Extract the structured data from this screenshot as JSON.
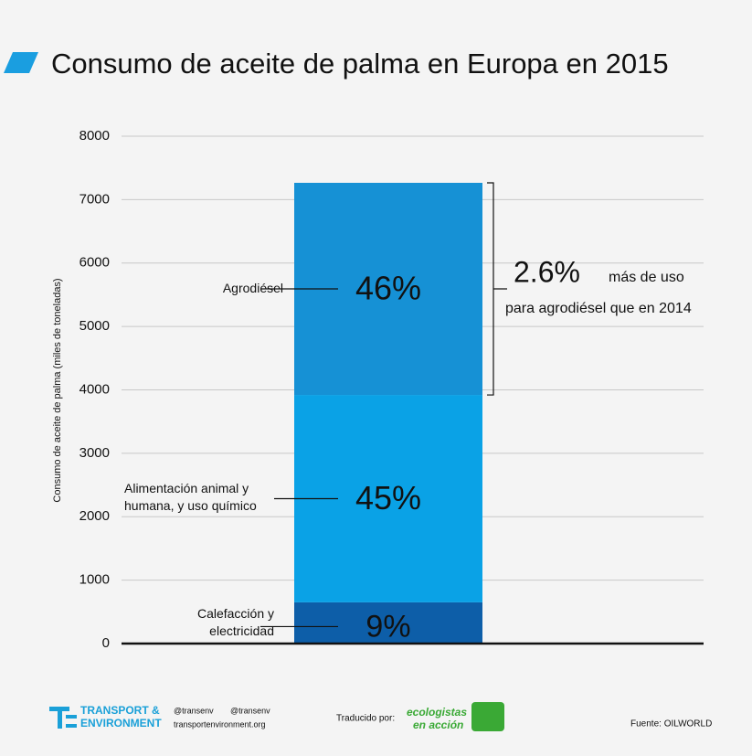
{
  "chart_data": {
    "type": "stacked_bar",
    "title": "Consumo de aceite de palma en Europa en 2015",
    "y_label": "Consumo de aceite de palma (miles de toneladas)",
    "categories": [
      null
    ],
    "series": [
      {
        "name": "Calefacción y electricidad",
        "color": "#0d5ea8",
        "values": [
          650
        ],
        "share_label": "9%"
      },
      {
        "name": "Alimentación animal y humana, y uso químico",
        "color": "#0aa2e6",
        "values": [
          3270
        ],
        "share_label": "45%"
      },
      {
        "name": "Agrodiésel",
        "color": "#1691d5",
        "values": [
          3345
        ],
        "share_label": "46%"
      }
    ],
    "ylim": [
      0,
      8000
    ],
    "yticks": [
      0,
      1000,
      2000,
      3000,
      4000,
      5000,
      6000,
      7000,
      8000
    ],
    "grid": true,
    "annotation": {
      "highlight": "2.6%",
      "line_1": "más de uso",
      "line_2": "para agrodiésel que en 2014"
    }
  },
  "footer": {
    "org_line_1": "TRANSPORT &",
    "org_line_2": "ENVIRONMENT",
    "twitter": "@transenv",
    "facebook": "@transenv",
    "website": "transportenvironment.org",
    "translated_by": "Traducido por:",
    "translator_line_1": "ecologistas",
    "translator_line_2": "en acción",
    "source": "Fuente: OILWORLD"
  }
}
